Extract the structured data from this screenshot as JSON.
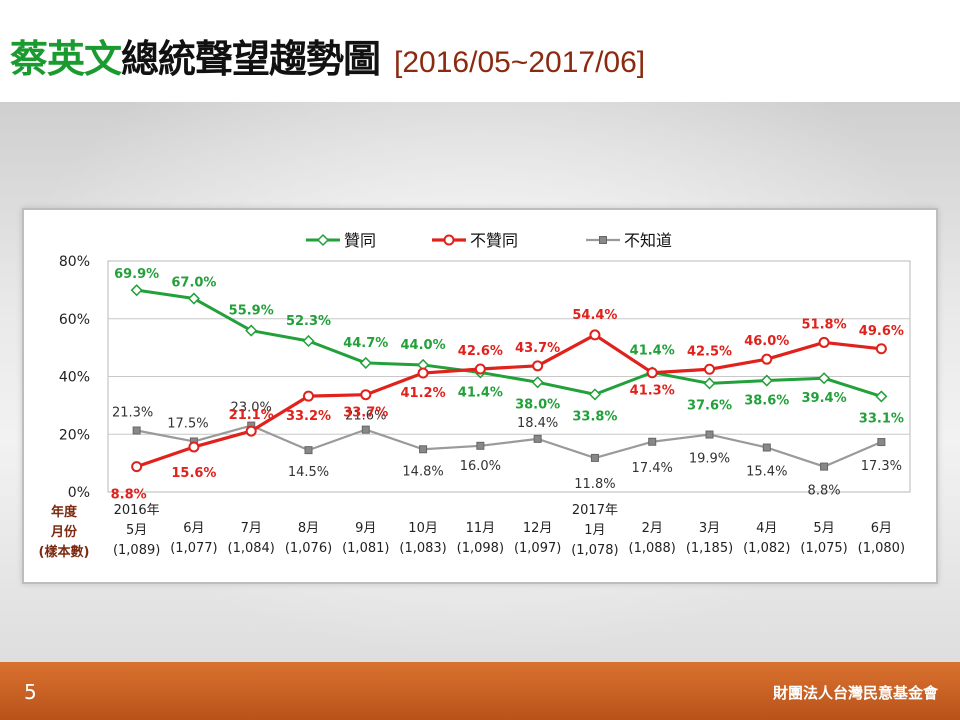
{
  "title": {
    "green": "蔡英文",
    "black": "總統聲望趨勢圖",
    "range": "[2016/05~2017/06]"
  },
  "footer": {
    "page_number": "5",
    "organization": "財團法人台灣民意基金會"
  },
  "colors": {
    "approve": "#22a03a",
    "disapprove": "#e0211c",
    "unknown": "#9a9a9a",
    "footer": "#c85f22"
  },
  "chart_data": {
    "type": "line",
    "ylim": [
      0,
      80
    ],
    "y_ticks": [
      "0%",
      "20%",
      "40%",
      "60%",
      "80%"
    ],
    "grid": true,
    "legend_position": "top-center",
    "row_labels": [
      "年度",
      "月份",
      "(樣本數)"
    ],
    "categories": [
      {
        "year": "2016年",
        "month": "5月",
        "sample": "(1,089)"
      },
      {
        "year": "",
        "month": "6月",
        "sample": "(1,077)"
      },
      {
        "year": "",
        "month": "7月",
        "sample": "(1,084)"
      },
      {
        "year": "",
        "month": "8月",
        "sample": "(1,076)"
      },
      {
        "year": "",
        "month": "9月",
        "sample": "(1,081)"
      },
      {
        "year": "",
        "month": "10月",
        "sample": "(1,083)"
      },
      {
        "year": "",
        "month": "11月",
        "sample": "(1,098)"
      },
      {
        "year": "",
        "month": "12月",
        "sample": "(1,097)"
      },
      {
        "year": "2017年",
        "month": "1月",
        "sample": "(1,078)"
      },
      {
        "year": "",
        "month": "2月",
        "sample": "(1,088)"
      },
      {
        "year": "",
        "month": "3月",
        "sample": "(1,185)"
      },
      {
        "year": "",
        "month": "4月",
        "sample": "(1,082)"
      },
      {
        "year": "",
        "month": "5月",
        "sample": "(1,075)"
      },
      {
        "year": "",
        "month": "6月",
        "sample": "(1,080)"
      }
    ],
    "series": [
      {
        "key": "approve",
        "name": "贊同",
        "values": [
          69.9,
          67.0,
          55.9,
          52.3,
          44.7,
          44.0,
          41.4,
          38.0,
          33.8,
          41.4,
          37.6,
          38.6,
          39.4,
          33.1
        ],
        "labels": [
          "69.9%",
          "67.0%",
          "55.9%",
          "52.3%",
          "44.7%",
          "44.0%",
          "41.4%",
          "38.0%",
          "33.8%",
          "41.4%",
          "37.6%",
          "38.6%",
          "39.4%",
          "33.1%"
        ]
      },
      {
        "key": "disapprove",
        "name": "不贊同",
        "values": [
          8.8,
          15.6,
          21.1,
          33.2,
          33.7,
          41.2,
          42.6,
          43.7,
          54.4,
          41.3,
          42.5,
          46.0,
          51.8,
          49.6
        ],
        "labels": [
          "8.8%",
          "15.6%",
          "21.1%",
          "33.2%",
          "33.7%",
          "41.2%",
          "42.6%",
          "43.7%",
          "54.4%",
          "41.3%",
          "42.5%",
          "46.0%",
          "51.8%",
          "49.6%"
        ]
      },
      {
        "key": "unknown",
        "name": "不知道",
        "values": [
          21.3,
          17.5,
          23.0,
          14.5,
          21.6,
          14.8,
          16.0,
          18.4,
          11.8,
          17.4,
          19.9,
          15.4,
          8.8,
          17.3
        ],
        "labels": [
          "21.3%",
          "17.5%",
          "23.0%",
          "14.5%",
          "21.6%",
          "14.8%",
          "16.0%",
          "18.4%",
          "11.8%",
          "17.4%",
          "19.9%",
          "15.4%",
          "8.8%",
          "17.3%"
        ]
      }
    ]
  }
}
